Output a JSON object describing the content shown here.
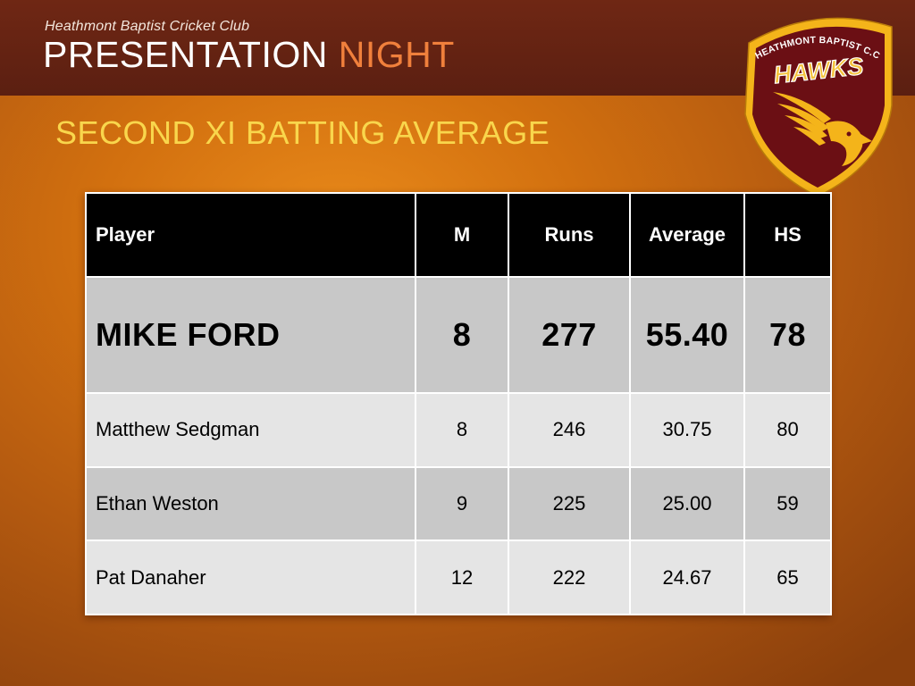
{
  "header": {
    "club_name": "Heathmont Baptist Cricket Club",
    "event_title_1": "PRESENTATION",
    "event_title_2": "NIGHT"
  },
  "section_title": "SECOND XI BATTING AVERAGE",
  "logo": {
    "top_text": "HEATHMONT BAPTIST C.C",
    "main_text": "HAWKS",
    "icon": "hawk-icon"
  },
  "table": {
    "headers": {
      "player": "Player",
      "m": "M",
      "runs": "Runs",
      "average": "Average",
      "hs": "HS"
    },
    "rows": [
      {
        "player": "MIKE FORD",
        "m": "8",
        "runs": "277",
        "average": "55.40",
        "hs": "78"
      },
      {
        "player": "Matthew Sedgman",
        "m": "8",
        "runs": "246",
        "average": "30.75",
        "hs": "80"
      },
      {
        "player": "Ethan Weston",
        "m": "9",
        "runs": "225",
        "average": "25.00",
        "hs": "59"
      },
      {
        "player": "Pat Danaher",
        "m": "12",
        "runs": "222",
        "average": "24.67",
        "hs": "65"
      }
    ]
  },
  "colors": {
    "header_bg": "#5b1f11",
    "title_accent": "#f0803c",
    "section_title": "#f9d64c",
    "shield_maroon": "#6b0f14",
    "shield_gold": "#f4b41a"
  }
}
